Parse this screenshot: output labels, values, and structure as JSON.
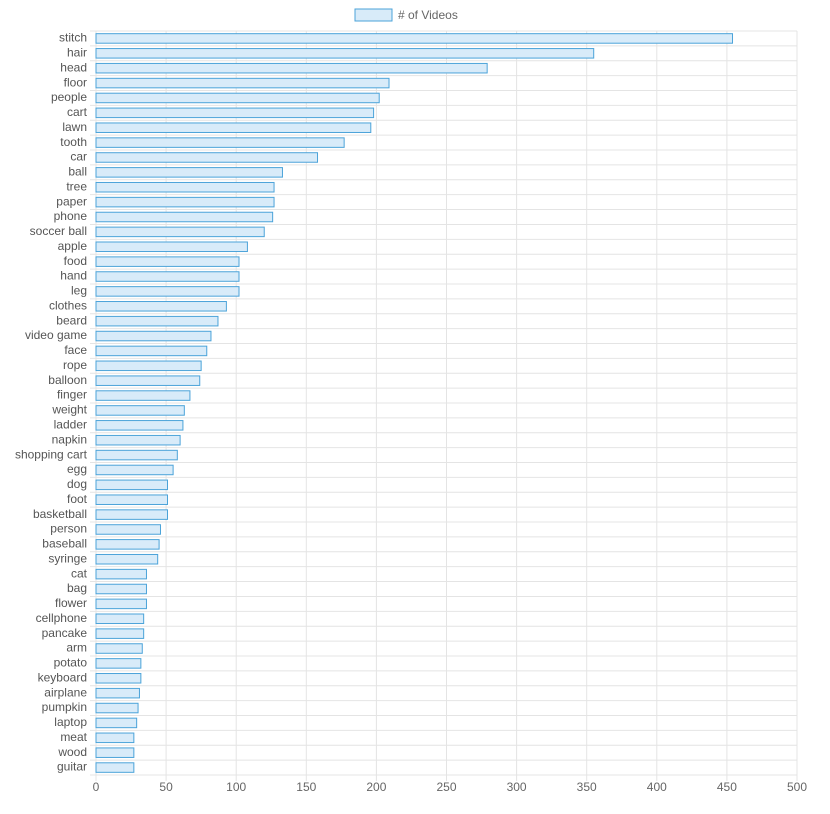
{
  "chart_data": {
    "type": "hbar",
    "legend": "top",
    "grid": true,
    "series": [
      {
        "name": "# of Videos",
        "color": "#4ba3d9",
        "fill": "#d8ebf9"
      }
    ],
    "categories": [
      "stitch",
      "hair",
      "head",
      "floor",
      "people",
      "cart",
      "lawn",
      "tooth",
      "car",
      "ball",
      "tree",
      "paper",
      "phone",
      "soccer ball",
      "apple",
      "food",
      "hand",
      "leg",
      "clothes",
      "beard",
      "video game",
      "face",
      "rope",
      "balloon",
      "finger",
      "weight",
      "ladder",
      "napkin",
      "shopping cart",
      "egg",
      "dog",
      "foot",
      "basketball",
      "person",
      "baseball",
      "syringe",
      "cat",
      "bag",
      "flower",
      "cellphone",
      "pancake",
      "arm",
      "potato",
      "keyboard",
      "airplane",
      "pumpkin",
      "laptop",
      "meat",
      "wood",
      "guitar"
    ],
    "values": [
      454,
      355,
      279,
      209,
      202,
      198,
      196,
      177,
      158,
      133,
      127,
      127,
      126,
      120,
      108,
      102,
      102,
      102,
      93,
      87,
      82,
      79,
      75,
      74,
      67,
      63,
      62,
      60,
      58,
      55,
      51,
      51,
      51,
      46,
      45,
      44,
      36,
      36,
      36,
      34,
      34,
      33,
      32,
      32,
      31,
      30,
      29,
      27,
      27,
      27
    ],
    "xlim": [
      0,
      500
    ],
    "xticks": [
      0,
      50,
      100,
      150,
      200,
      250,
      300,
      350,
      400,
      450,
      500
    ]
  }
}
